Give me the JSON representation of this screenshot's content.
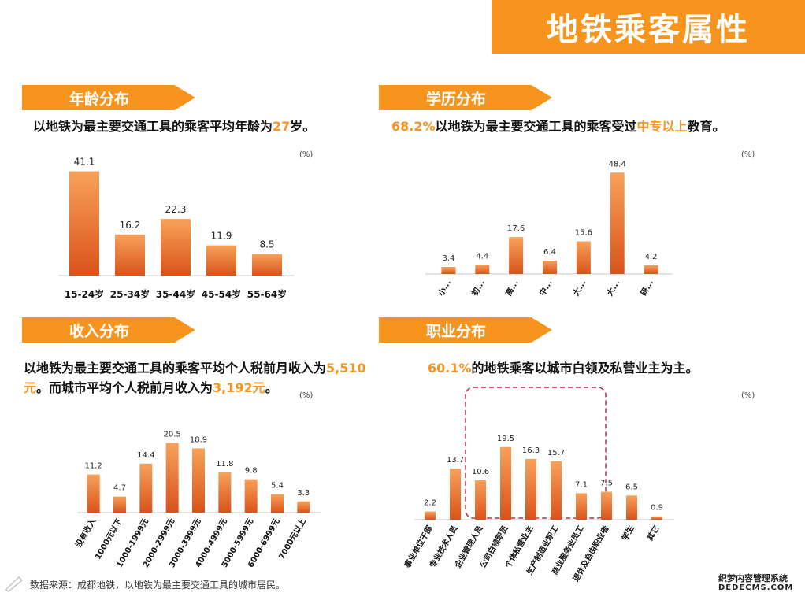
{
  "page": {
    "title": "地铁乘客属性"
  },
  "sections": {
    "age": {
      "label": "年龄分布",
      "headline": {
        "pre": "以地铁为最主要交通工具的乘客平均年龄为",
        "hl": "27",
        "post": "岁。"
      },
      "unit": "(%)"
    },
    "edu": {
      "label": "学历分布",
      "headline": {
        "hl1": "68.2%",
        "mid": "以地铁为最主要交通工具的乘客受过",
        "hl2": "中专以上",
        "post": "教育。"
      },
      "unit": "(%)"
    },
    "income": {
      "label": "收入分布",
      "headline": {
        "pre": "以地铁为最主要交通工具的乘客平均个人税前月收入为",
        "hl1": "5,510元",
        "mid": "。而城市平均个人税前月收入为",
        "hl2": "3,192元",
        "post": "。"
      },
      "unit": "(%)"
    },
    "job": {
      "label": "职业分布",
      "headline": {
        "hl": "60.1%",
        "post": "的地铁乘客以城市白领及私营业主为主。"
      },
      "unit": "(%)"
    }
  },
  "footer": "数据来源：成都地铁，以地铁为最主要交通工具的城市居民。",
  "watermark": {
    "line1": "织梦内容管理系统",
    "line2": "DEDECMS.COM"
  },
  "colors": {
    "accent": "#f7941d",
    "bar_top": "#f58a3c",
    "bar_bottom": "#d9531a"
  },
  "chart_data": [
    {
      "id": "age",
      "type": "bar",
      "categories": [
        "15-24岁",
        "25-34岁",
        "35-44岁",
        "45-54岁",
        "55-64岁"
      ],
      "values": [
        41.1,
        16.2,
        22.3,
        11.9,
        8.5
      ],
      "ylim": [
        0,
        45
      ],
      "grid": false
    },
    {
      "id": "edu",
      "type": "bar",
      "categories": [
        "小...",
        "初...",
        "高...",
        "中...",
        "大...",
        "大...",
        "研..."
      ],
      "values": [
        3.4,
        4.4,
        17.6,
        6.4,
        15.6,
        48.4,
        4.2
      ],
      "ylim": [
        0,
        50
      ],
      "grid": false
    },
    {
      "id": "income",
      "type": "bar",
      "categories": [
        "没有收入",
        "1000元以下",
        "1000-1999元",
        "2000-2999元",
        "3000-3999元",
        "4000-4999元",
        "5000-5999元",
        "6000-6999元",
        "7000元以上"
      ],
      "values": [
        11.2,
        4.7,
        14.4,
        20.5,
        18.9,
        11.8,
        9.8,
        5.4,
        3.3
      ],
      "ylim": [
        0,
        22
      ],
      "grid": false
    },
    {
      "id": "job",
      "type": "bar",
      "categories": [
        "事业单位干部",
        "专业技术人员",
        "企业管理人员",
        "公司白领职员",
        "个体私营业主",
        "生产制造业职工",
        "商业服务业员工",
        "退休及自由职业者",
        "学生",
        "其它"
      ],
      "values": [
        2.2,
        13.7,
        10.6,
        19.5,
        16.3,
        15.7,
        7.1,
        7.5,
        6.5,
        0.9
      ],
      "ylim": [
        0,
        22
      ],
      "grid": false
    }
  ]
}
